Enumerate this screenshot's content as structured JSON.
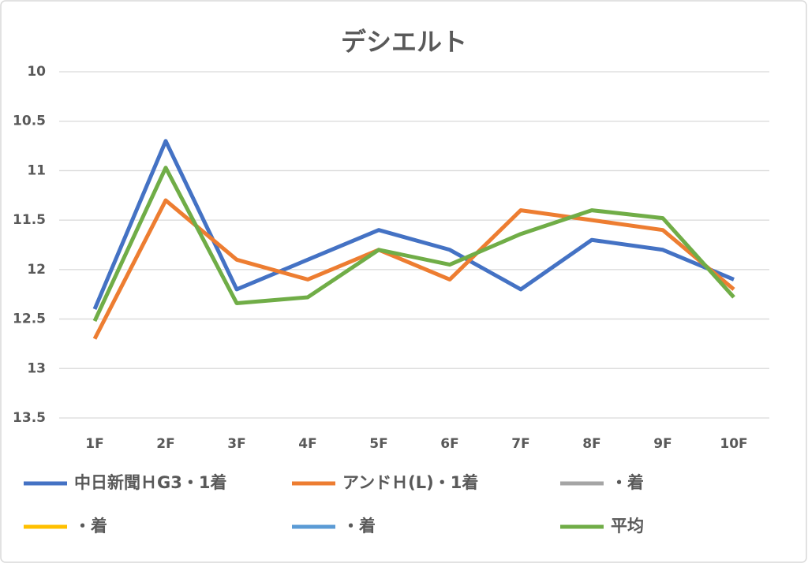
{
  "chart_data": {
    "type": "line",
    "title": "デシエルト",
    "categories": [
      "1F",
      "2F",
      "3F",
      "4F",
      "5F",
      "6F",
      "7F",
      "8F",
      "9F",
      "10F"
    ],
    "series": [
      {
        "name": "中日新聞ＨG3・1着",
        "color": "#4472c4",
        "values": [
          12.4,
          10.7,
          12.2,
          11.9,
          11.6,
          11.8,
          12.2,
          11.7,
          11.8,
          12.1
        ]
      },
      {
        "name": "アンドＨ(L)・1着",
        "color": "#ed7d31",
        "values": [
          12.7,
          11.3,
          11.9,
          12.1,
          11.8,
          12.1,
          11.4,
          11.5,
          11.6,
          12.2
        ]
      },
      {
        "name": "・着",
        "color": "#a5a5a5",
        "values": [
          null,
          null,
          null,
          null,
          null,
          null,
          null,
          null,
          null,
          null
        ]
      },
      {
        "name": "・着",
        "color": "#ffc000",
        "values": [
          null,
          null,
          null,
          null,
          null,
          null,
          null,
          null,
          null,
          null
        ]
      },
      {
        "name": "・着",
        "color": "#5b9bd5",
        "values": [
          null,
          null,
          null,
          null,
          null,
          null,
          null,
          null,
          null,
          null
        ]
      },
      {
        "name": "平均",
        "color": "#70ad47",
        "values": [
          12.52,
          10.97,
          12.34,
          12.28,
          11.8,
          11.95,
          11.64,
          11.4,
          11.48,
          12.28
        ]
      }
    ],
    "ylim": [
      10,
      13.5
    ],
    "y_inverted": true,
    "yticks": [
      10,
      10.5,
      11,
      11.5,
      12,
      12.5,
      13,
      13.5
    ],
    "grid": true
  }
}
